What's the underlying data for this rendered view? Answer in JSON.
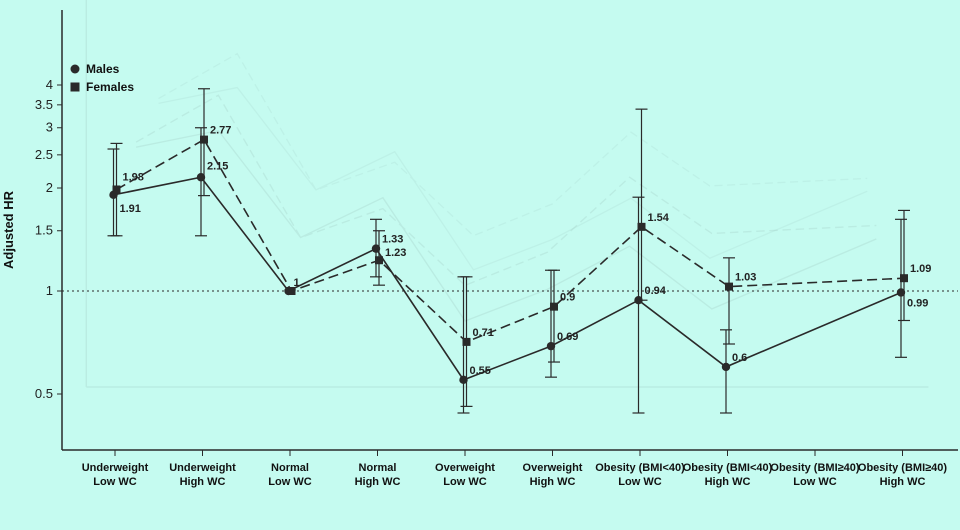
{
  "chart_data": {
    "type": "line",
    "ylabel": "Adjusted HR",
    "y_scale": "log",
    "ylim": [
      0.4,
      4.5
    ],
    "y_ticks": [
      0.5,
      1,
      1.5,
      2,
      2.5,
      3,
      3.5,
      4
    ],
    "reference_line": 1,
    "grid": false,
    "legend_position": "top-left",
    "categories": [
      [
        "Underweight",
        "Low WC"
      ],
      [
        "Underweight",
        "High WC"
      ],
      [
        "Normal",
        "Low WC"
      ],
      [
        "Normal",
        "High WC"
      ],
      [
        "Overweight",
        "Low WC"
      ],
      [
        "Overweight",
        "High WC"
      ],
      [
        "Obesity (BMI<40)",
        "Low WC"
      ],
      [
        "Obesity (BMI<40)",
        "High WC"
      ],
      [
        "Obesity (BMI≥40)",
        "Low WC"
      ],
      [
        "Obesity (BMI≥40)",
        "High WC"
      ]
    ],
    "series": [
      {
        "name": "Males",
        "marker": "circle",
        "line_style": "solid",
        "values": [
          1.91,
          2.15,
          1,
          1.33,
          0.55,
          0.69,
          0.94,
          0.6,
          null,
          0.99
        ],
        "ci_low": [
          1.45,
          1.45,
          null,
          1.1,
          0.44,
          0.56,
          0.44,
          0.44,
          null,
          0.64
        ],
        "ci_high": [
          2.6,
          3.0,
          null,
          1.62,
          1.1,
          1.15,
          1.88,
          0.77,
          null,
          1.62
        ],
        "labels": [
          "1.91",
          "2.15",
          "1",
          "1.33",
          "0.55",
          "0.69",
          "0.94",
          "0.6",
          "",
          "0.99"
        ]
      },
      {
        "name": "Females",
        "marker": "square",
        "line_style": "dashed",
        "values": [
          1.98,
          2.77,
          1,
          1.23,
          0.71,
          0.9,
          1.54,
          1.03,
          null,
          1.09
        ],
        "ci_low": [
          1.45,
          1.9,
          null,
          1.04,
          0.46,
          0.62,
          0.94,
          0.7,
          null,
          0.82
        ],
        "ci_high": [
          2.7,
          3.9,
          null,
          1.5,
          1.1,
          1.15,
          3.4,
          1.25,
          null,
          1.72
        ],
        "labels": [
          "1.98",
          "2.77",
          "1",
          "1.23",
          "0.71",
          "0.9",
          "1.54",
          "1.03",
          "",
          "1.09"
        ]
      }
    ]
  },
  "colors": {
    "background": "#c5fbf0",
    "ink": "#2a2a2a",
    "ghost": "#9ec9c0"
  }
}
